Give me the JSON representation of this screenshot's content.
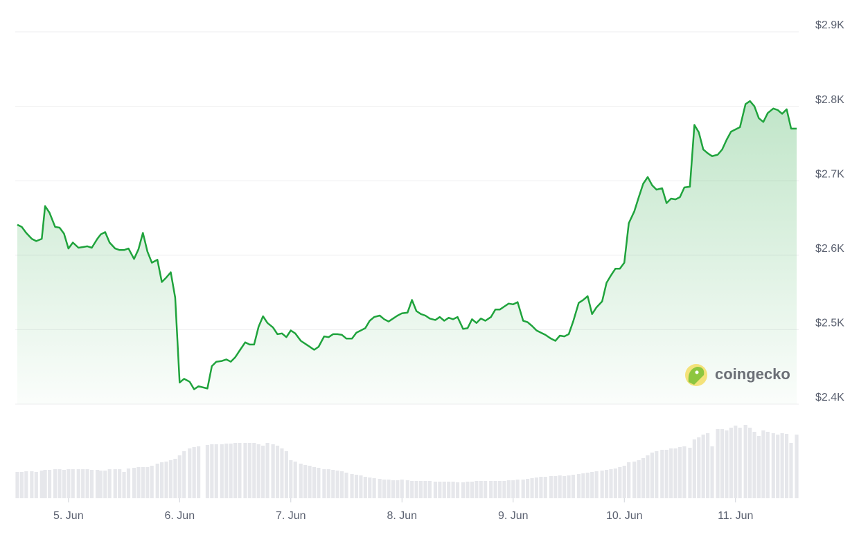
{
  "chart_data": {
    "type": "line",
    "color": "#1fa33c",
    "watermark": "coingecko",
    "xlim": [
      4.54,
      11.55
    ],
    "xticks": [
      {
        "value": 5,
        "label": "5. Jun"
      },
      {
        "value": 6,
        "label": "6. Jun"
      },
      {
        "value": 7,
        "label": "7. Jun"
      },
      {
        "value": 8,
        "label": "8. Jun"
      },
      {
        "value": 9,
        "label": "9. Jun"
      },
      {
        "value": 10,
        "label": "10. Jun"
      },
      {
        "value": 11,
        "label": "11. Jun"
      }
    ],
    "ylim": [
      2400,
      2900
    ],
    "yticks": [
      {
        "value": 2400,
        "label": "$2.4K"
      },
      {
        "value": 2500,
        "label": "$2.5K"
      },
      {
        "value": 2600,
        "label": "$2.6K"
      },
      {
        "value": 2700,
        "label": "$2.7K"
      },
      {
        "value": 2800,
        "label": "$2.8K"
      },
      {
        "value": 2900,
        "label": "$2.9K"
      }
    ],
    "grid": true,
    "x": [
      4.54,
      4.58,
      4.62,
      4.67,
      4.71,
      4.76,
      4.79,
      4.83,
      4.88,
      4.92,
      4.96,
      5.0,
      5.04,
      5.09,
      5.13,
      5.17,
      5.21,
      5.26,
      5.29,
      5.33,
      5.37,
      5.42,
      5.46,
      5.5,
      5.54,
      5.59,
      5.63,
      5.67,
      5.71,
      5.75,
      5.8,
      5.84,
      5.88,
      5.92,
      5.96,
      6.0,
      6.04,
      6.09,
      6.13,
      6.17,
      6.25,
      6.29,
      6.33,
      6.38,
      6.42,
      6.46,
      6.5,
      6.54,
      6.59,
      6.63,
      6.67,
      6.71,
      6.75,
      6.79,
      6.84,
      6.88,
      6.92,
      6.96,
      7.0,
      7.04,
      7.09,
      7.13,
      7.17,
      7.21,
      7.25,
      7.3,
      7.34,
      7.38,
      7.42,
      7.46,
      7.5,
      7.55,
      7.59,
      7.63,
      7.67,
      7.71,
      7.75,
      7.8,
      7.84,
      7.88,
      7.92,
      7.96,
      8.0,
      8.05,
      8.09,
      8.13,
      8.17,
      8.21,
      8.25,
      8.3,
      8.34,
      8.38,
      8.42,
      8.46,
      8.5,
      8.55,
      8.59,
      8.63,
      8.67,
      8.71,
      8.75,
      8.8,
      8.84,
      8.88,
      8.92,
      8.96,
      9.0,
      9.04,
      9.09,
      9.13,
      9.17,
      9.21,
      9.25,
      9.29,
      9.34,
      9.38,
      9.42,
      9.46,
      9.5,
      9.54,
      9.59,
      9.63,
      9.67,
      9.71,
      9.75,
      9.8,
      9.84,
      9.88,
      9.92,
      9.96,
      10.0,
      10.04,
      10.09,
      10.13,
      10.17,
      10.21,
      10.25,
      10.29,
      10.34,
      10.38,
      10.42,
      10.46,
      10.5,
      10.54,
      10.59,
      10.63,
      10.67,
      10.71,
      10.75,
      10.79,
      10.84,
      10.88,
      10.92,
      10.96,
      11.0,
      11.04,
      11.09,
      11.13,
      11.17,
      11.21,
      11.25,
      11.29,
      11.34,
      11.38,
      11.42,
      11.46,
      11.5,
      11.55
    ],
    "values": [
      2641,
      2638,
      2630,
      2622,
      2619,
      2622,
      2666,
      2657,
      2638,
      2637,
      2629,
      2609,
      2617,
      2610,
      2611,
      2612,
      2610,
      2622,
      2628,
      2631,
      2617,
      2609,
      2607,
      2607,
      2609,
      2595,
      2608,
      2630,
      2605,
      2590,
      2594,
      2564,
      2570,
      2577,
      2543,
      2429,
      2434,
      2430,
      2420,
      2424,
      2421,
      2451,
      2457,
      2458,
      2460,
      2457,
      2463,
      2472,
      2483,
      2480,
      2480,
      2504,
      2518,
      2509,
      2503,
      2494,
      2495,
      2490,
      2499,
      2495,
      2485,
      2481,
      2477,
      2473,
      2477,
      2491,
      2490,
      2494,
      2494,
      2493,
      2488,
      2488,
      2496,
      2499,
      2502,
      2512,
      2517,
      2519,
      2514,
      2511,
      2515,
      2519,
      2522,
      2523,
      2540,
      2525,
      2521,
      2519,
      2515,
      2513,
      2517,
      2512,
      2516,
      2514,
      2517,
      2501,
      2502,
      2514,
      2509,
      2515,
      2512,
      2517,
      2527,
      2527,
      2531,
      2535,
      2534,
      2537,
      2512,
      2510,
      2505,
      2499,
      2496,
      2493,
      2488,
      2485,
      2492,
      2491,
      2494,
      2511,
      2536,
      2540,
      2545,
      2521,
      2530,
      2538,
      2563,
      2573,
      2582,
      2582,
      2590,
      2643,
      2659,
      2678,
      2696,
      2705,
      2694,
      2688,
      2690,
      2670,
      2676,
      2675,
      2678,
      2691,
      2692,
      2775,
      2765,
      2742,
      2737,
      2733,
      2735,
      2742,
      2755,
      2766,
      2769,
      2772,
      2803,
      2807,
      2800,
      2784,
      2779,
      2791,
      2797,
      2795,
      2790,
      2796,
      2770,
      2770
    ],
    "volume": {
      "color": "#e6e7eb",
      "ylim": [
        0,
        130
      ],
      "values": [
        38,
        38,
        39,
        39,
        38,
        40,
        41,
        41,
        42,
        42,
        41,
        42,
        42,
        42,
        42,
        42,
        41,
        41,
        40,
        40,
        42,
        42,
        42,
        38,
        43,
        44,
        45,
        45,
        45,
        47,
        50,
        52,
        53,
        55,
        57,
        62,
        68,
        72,
        74,
        75,
        77,
        78,
        78,
        78,
        79,
        79,
        80,
        80,
        80,
        80,
        80,
        78,
        76,
        80,
        78,
        76,
        72,
        68,
        55,
        53,
        50,
        48,
        47,
        45,
        44,
        42,
        42,
        41,
        40,
        39,
        37,
        35,
        34,
        33,
        31,
        30,
        29,
        28,
        27,
        27,
        26,
        26,
        27,
        26,
        25,
        25,
        25,
        25,
        25,
        24,
        24,
        24,
        24,
        24,
        23,
        23,
        24,
        24,
        25,
        25,
        25,
        25,
        25,
        25,
        25,
        26,
        26,
        27,
        27,
        28,
        29,
        30,
        31,
        31,
        32,
        32,
        33,
        32,
        33,
        34,
        35,
        36,
        37,
        38,
        39,
        40,
        41,
        42,
        43,
        45,
        47,
        52,
        53,
        55,
        58,
        62,
        66,
        68,
        70,
        70,
        72,
        72,
        74,
        75,
        73,
        85,
        88,
        92,
        94,
        75,
        100,
        100,
        98,
        102,
        105,
        102,
        106,
        102,
        96,
        90,
        98,
        96,
        94,
        92,
        94,
        93,
        80,
        92
      ]
    }
  }
}
